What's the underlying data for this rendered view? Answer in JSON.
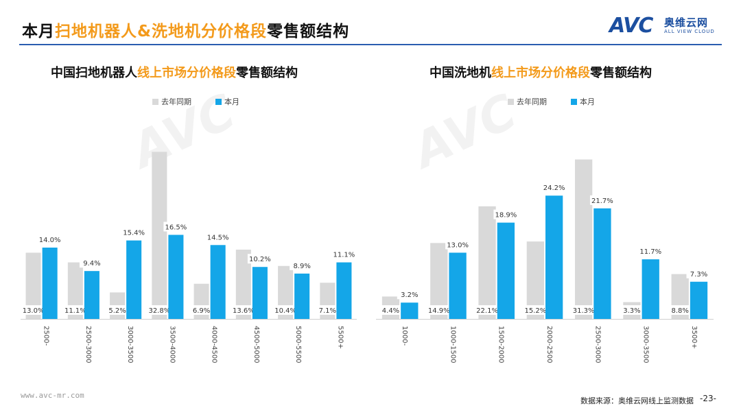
{
  "header": {
    "title_parts": [
      "本月",
      "扫地机器人&洗地机分价格段",
      "零售额结构"
    ]
  },
  "logo": {
    "brand": "AVC",
    "cn": "奥维云网",
    "en": "ALL VIEW CLOUD"
  },
  "footer": {
    "url": "www.avc-mr.com",
    "source": "数据来源：奥维云网线上监测数据",
    "page": "-23-"
  },
  "colors": {
    "last_year": "#d9d9d9",
    "this_month": "#14a6e8",
    "highlight": "#f39a1b",
    "rule": "#2a5db0"
  },
  "chart_data": [
    {
      "type": "bar",
      "title_parts": [
        "中国扫地机器人",
        "线上市场分价格段",
        "零售额结构"
      ],
      "categories": [
        "2500-",
        "2500-3000",
        "3000-3500",
        "3500-4000",
        "4000-4500",
        "4500-5000",
        "5000-5500",
        "5500+"
      ],
      "series": [
        {
          "name": "去年同期",
          "values": [
            13.0,
            11.1,
            5.2,
            32.8,
            6.9,
            13.6,
            10.4,
            7.1
          ],
          "labels": [
            "13.0%",
            "11.1%",
            "5.2%",
            "32.8%",
            "6.9%",
            "13.6%",
            "10.4%",
            "7.1%"
          ]
        },
        {
          "name": "本月",
          "values": [
            14.0,
            9.4,
            15.4,
            16.5,
            14.5,
            10.2,
            8.9,
            11.1
          ],
          "labels": [
            "14.0%",
            "9.4%",
            "15.4%",
            "16.5%",
            "14.5%",
            "10.2%",
            "8.9%",
            "11.1%"
          ]
        }
      ],
      "ylim": [
        0,
        35
      ],
      "legend": "top-center",
      "grid": false
    },
    {
      "type": "bar",
      "title_parts": [
        "中国洗地机",
        "线上市场分价格段",
        "零售额结构"
      ],
      "categories": [
        "1000-",
        "1000-1500",
        "1500-2000",
        "2000-2500",
        "2500-3000",
        "3000-3500",
        "3500+"
      ],
      "series": [
        {
          "name": "去年同期",
          "values": [
            4.4,
            14.9,
            22.1,
            15.2,
            31.3,
            3.3,
            8.8
          ],
          "labels": [
            "4.4%",
            "14.9%",
            "22.1%",
            "15.2%",
            "31.3%",
            "3.3%",
            "8.8%"
          ]
        },
        {
          "name": "本月",
          "values": [
            3.2,
            13.0,
            18.9,
            24.2,
            21.7,
            11.7,
            7.3
          ],
          "labels": [
            "3.2%",
            "13.0%",
            "18.9%",
            "24.2%",
            "21.7%",
            "11.7%",
            "7.3%"
          ]
        }
      ],
      "ylim": [
        0,
        35
      ],
      "legend": "top-center",
      "grid": false
    }
  ]
}
